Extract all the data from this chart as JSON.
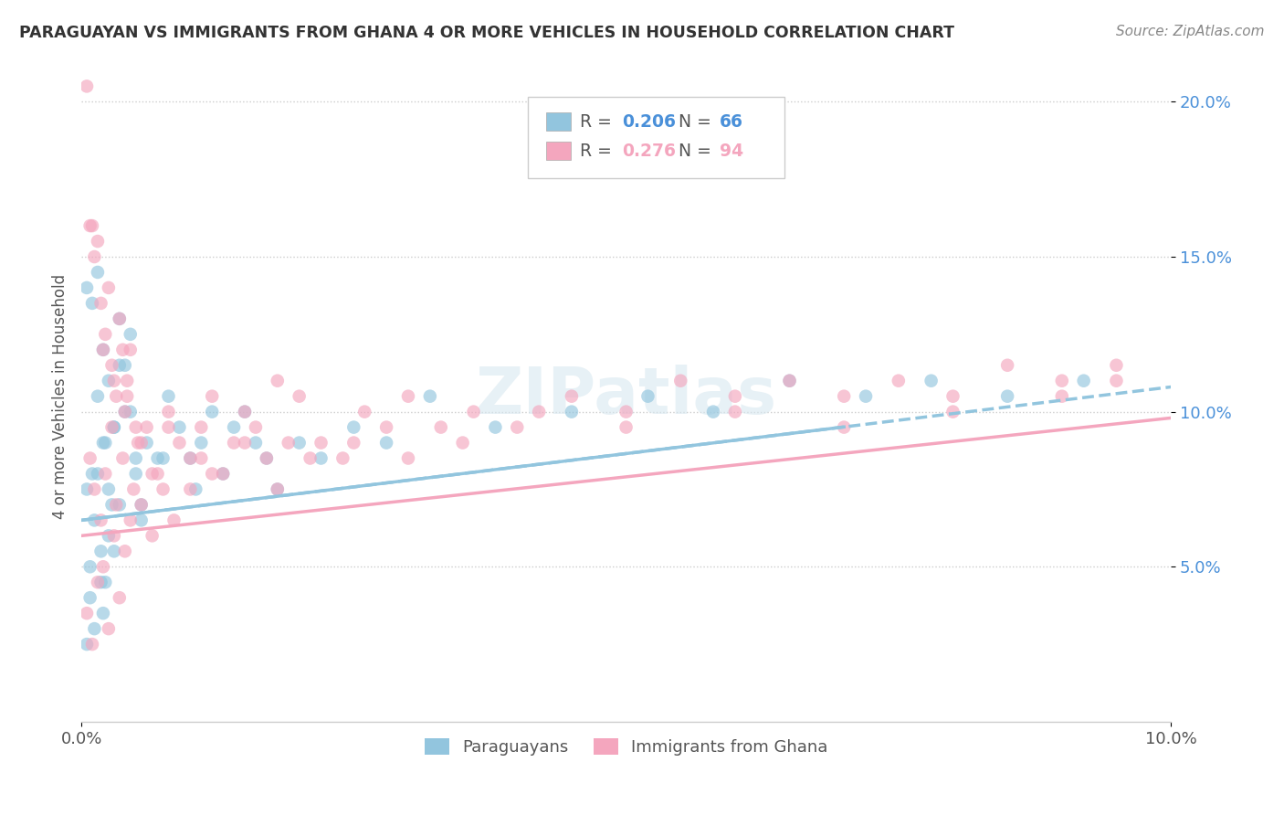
{
  "title": "PARAGUAYAN VS IMMIGRANTS FROM GHANA 4 OR MORE VEHICLES IN HOUSEHOLD CORRELATION CHART",
  "source": "Source: ZipAtlas.com",
  "ylabel": "4 or more Vehicles in Household",
  "xlim": [
    0.0,
    10.0
  ],
  "ylim": [
    0.0,
    21.0
  ],
  "ytick_labels": [
    "5.0%",
    "10.0%",
    "15.0%",
    "20.0%"
  ],
  "ytick_vals": [
    5.0,
    10.0,
    15.0,
    20.0
  ],
  "legend_r1": "0.206",
  "legend_n1": "66",
  "legend_r2": "0.276",
  "legend_n2": "94",
  "color_blue": "#92c5de",
  "color_pink": "#f4a6be",
  "watermark": "ZIPatlas",
  "par_x": [
    0.05,
    0.08,
    0.12,
    0.15,
    0.18,
    0.2,
    0.22,
    0.25,
    0.28,
    0.3,
    0.05,
    0.1,
    0.15,
    0.2,
    0.25,
    0.3,
    0.35,
    0.4,
    0.45,
    0.5,
    0.1,
    0.15,
    0.2,
    0.25,
    0.3,
    0.35,
    0.4,
    0.45,
    0.5,
    0.55,
    0.6,
    0.7,
    0.8,
    0.9,
    1.0,
    1.1,
    1.2,
    1.3,
    1.4,
    1.5,
    1.6,
    1.7,
    1.8,
    2.0,
    2.2,
    2.5,
    2.8,
    3.2,
    3.8,
    4.5,
    5.2,
    5.8,
    6.5,
    7.2,
    7.8,
    8.5,
    9.2,
    0.05,
    0.08,
    0.12,
    0.18,
    0.22,
    0.35,
    0.55,
    0.75,
    1.05
  ],
  "par_y": [
    7.5,
    5.0,
    6.5,
    8.0,
    4.5,
    3.5,
    9.0,
    6.0,
    7.0,
    5.5,
    14.0,
    13.5,
    10.5,
    12.0,
    11.0,
    9.5,
    13.0,
    11.5,
    10.0,
    8.5,
    8.0,
    14.5,
    9.0,
    7.5,
    9.5,
    11.5,
    10.0,
    12.5,
    8.0,
    7.0,
    9.0,
    8.5,
    10.5,
    9.5,
    8.5,
    9.0,
    10.0,
    8.0,
    9.5,
    10.0,
    9.0,
    8.5,
    7.5,
    9.0,
    8.5,
    9.5,
    9.0,
    10.5,
    9.5,
    10.0,
    10.5,
    10.0,
    11.0,
    10.5,
    11.0,
    10.5,
    11.0,
    2.5,
    4.0,
    3.0,
    5.5,
    4.5,
    7.0,
    6.5,
    8.5,
    7.5
  ],
  "gha_x": [
    0.05,
    0.1,
    0.15,
    0.2,
    0.25,
    0.3,
    0.35,
    0.4,
    0.45,
    0.5,
    0.08,
    0.12,
    0.18,
    0.22,
    0.28,
    0.32,
    0.38,
    0.42,
    0.48,
    0.52,
    0.6,
    0.7,
    0.8,
    0.9,
    1.0,
    1.1,
    1.2,
    1.3,
    1.4,
    1.5,
    1.6,
    1.7,
    1.8,
    1.9,
    2.0,
    2.2,
    2.4,
    2.6,
    2.8,
    3.0,
    3.3,
    3.6,
    4.0,
    4.5,
    5.0,
    5.5,
    6.0,
    6.5,
    7.0,
    7.5,
    8.0,
    8.5,
    9.0,
    9.5,
    0.05,
    0.1,
    0.15,
    0.2,
    0.25,
    0.3,
    0.35,
    0.4,
    0.45,
    0.55,
    0.65,
    0.75,
    0.85,
    1.0,
    1.2,
    1.5,
    1.8,
    2.1,
    2.5,
    3.0,
    3.5,
    4.2,
    5.0,
    6.0,
    7.0,
    8.0,
    9.0,
    9.5,
    0.08,
    0.12,
    0.18,
    0.22,
    0.28,
    0.32,
    0.38,
    0.42,
    0.55,
    0.65,
    0.8,
    1.1
  ],
  "gha_y": [
    20.5,
    16.0,
    15.5,
    12.0,
    14.0,
    11.0,
    13.0,
    10.0,
    12.0,
    9.5,
    8.5,
    7.5,
    6.5,
    8.0,
    9.5,
    7.0,
    8.5,
    10.5,
    7.5,
    9.0,
    9.5,
    8.0,
    10.0,
    9.0,
    8.5,
    9.5,
    10.5,
    8.0,
    9.0,
    10.0,
    9.5,
    8.5,
    11.0,
    9.0,
    10.5,
    9.0,
    8.5,
    10.0,
    9.5,
    10.5,
    9.5,
    10.0,
    9.5,
    10.5,
    10.0,
    11.0,
    10.5,
    11.0,
    10.5,
    11.0,
    10.5,
    11.5,
    11.0,
    11.5,
    3.5,
    2.5,
    4.5,
    5.0,
    3.0,
    6.0,
    4.0,
    5.5,
    6.5,
    7.0,
    6.0,
    7.5,
    6.5,
    7.5,
    8.0,
    9.0,
    7.5,
    8.5,
    9.0,
    8.5,
    9.0,
    10.0,
    9.5,
    10.0,
    9.5,
    10.0,
    10.5,
    11.0,
    16.0,
    15.0,
    13.5,
    12.5,
    11.5,
    10.5,
    12.0,
    11.0,
    9.0,
    8.0,
    9.5,
    8.5
  ]
}
